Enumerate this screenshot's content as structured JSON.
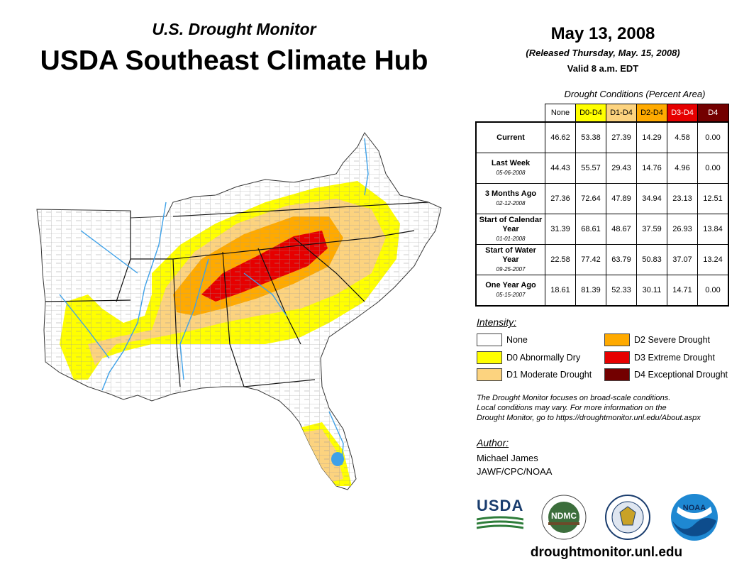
{
  "header": {
    "subtitle": "U.S. Drought Monitor",
    "title": "USDA Southeast Climate Hub",
    "date": "May 13, 2008",
    "released": "(Released Thursday, May. 15, 2008)",
    "valid": "Valid 8 a.m. EDT"
  },
  "conditions": {
    "title": "Drought Conditions (Percent Area)",
    "columns": [
      "None",
      "D0-D4",
      "D1-D4",
      "D2-D4",
      "D3-D4",
      "D4"
    ],
    "column_colors": [
      "#ffffff",
      "#ffff00",
      "#fcd37f",
      "#ffaa00",
      "#e60000",
      "#730000"
    ],
    "rows": [
      {
        "label": "Current",
        "sub": "",
        "values": [
          "46.62",
          "53.38",
          "27.39",
          "14.29",
          "4.58",
          "0.00"
        ]
      },
      {
        "label": "Last Week",
        "sub": "05-06-2008",
        "values": [
          "44.43",
          "55.57",
          "29.43",
          "14.76",
          "4.96",
          "0.00"
        ]
      },
      {
        "label": "3 Months Ago",
        "sub": "02-12-2008",
        "values": [
          "27.36",
          "72.64",
          "47.89",
          "34.94",
          "23.13",
          "12.51"
        ]
      },
      {
        "label": "Start of Calendar Year",
        "sub": "01-01-2008",
        "values": [
          "31.39",
          "68.61",
          "48.67",
          "37.59",
          "26.93",
          "13.84"
        ]
      },
      {
        "label": "Start of Water Year",
        "sub": "09-25-2007",
        "values": [
          "22.58",
          "77.42",
          "63.79",
          "50.83",
          "37.07",
          "13.24"
        ]
      },
      {
        "label": "One Year Ago",
        "sub": "05-15-2007",
        "values": [
          "18.61",
          "81.39",
          "52.33",
          "30.11",
          "14.71",
          "0.00"
        ]
      }
    ]
  },
  "legend": {
    "heading": "Intensity:",
    "items": [
      {
        "label": "None",
        "color": "#ffffff"
      },
      {
        "label": "D0 Abnormally Dry",
        "color": "#ffff00"
      },
      {
        "label": "D1 Moderate Drought",
        "color": "#fcd37f"
      },
      {
        "label": "D2 Severe Drought",
        "color": "#ffaa00"
      },
      {
        "label": "D3 Extreme Drought",
        "color": "#e60000"
      },
      {
        "label": "D4 Exceptional Drought",
        "color": "#730000"
      }
    ]
  },
  "note": {
    "line1": "The Drought Monitor focuses on broad-scale conditions.",
    "line2": "Local conditions may vary. For more information on the",
    "line3": "Drought Monitor, go to https://droughtmonitor.unl.edu/About.aspx"
  },
  "author": {
    "heading": "Author:",
    "name": "Michael James",
    "org": "JAWF/CPC/NOAA"
  },
  "logos": {
    "usda": "USDA",
    "ndmc": "NDMC",
    "noaa": "NOAA"
  },
  "footer": {
    "url": "droughtmonitor.unl.edu"
  }
}
